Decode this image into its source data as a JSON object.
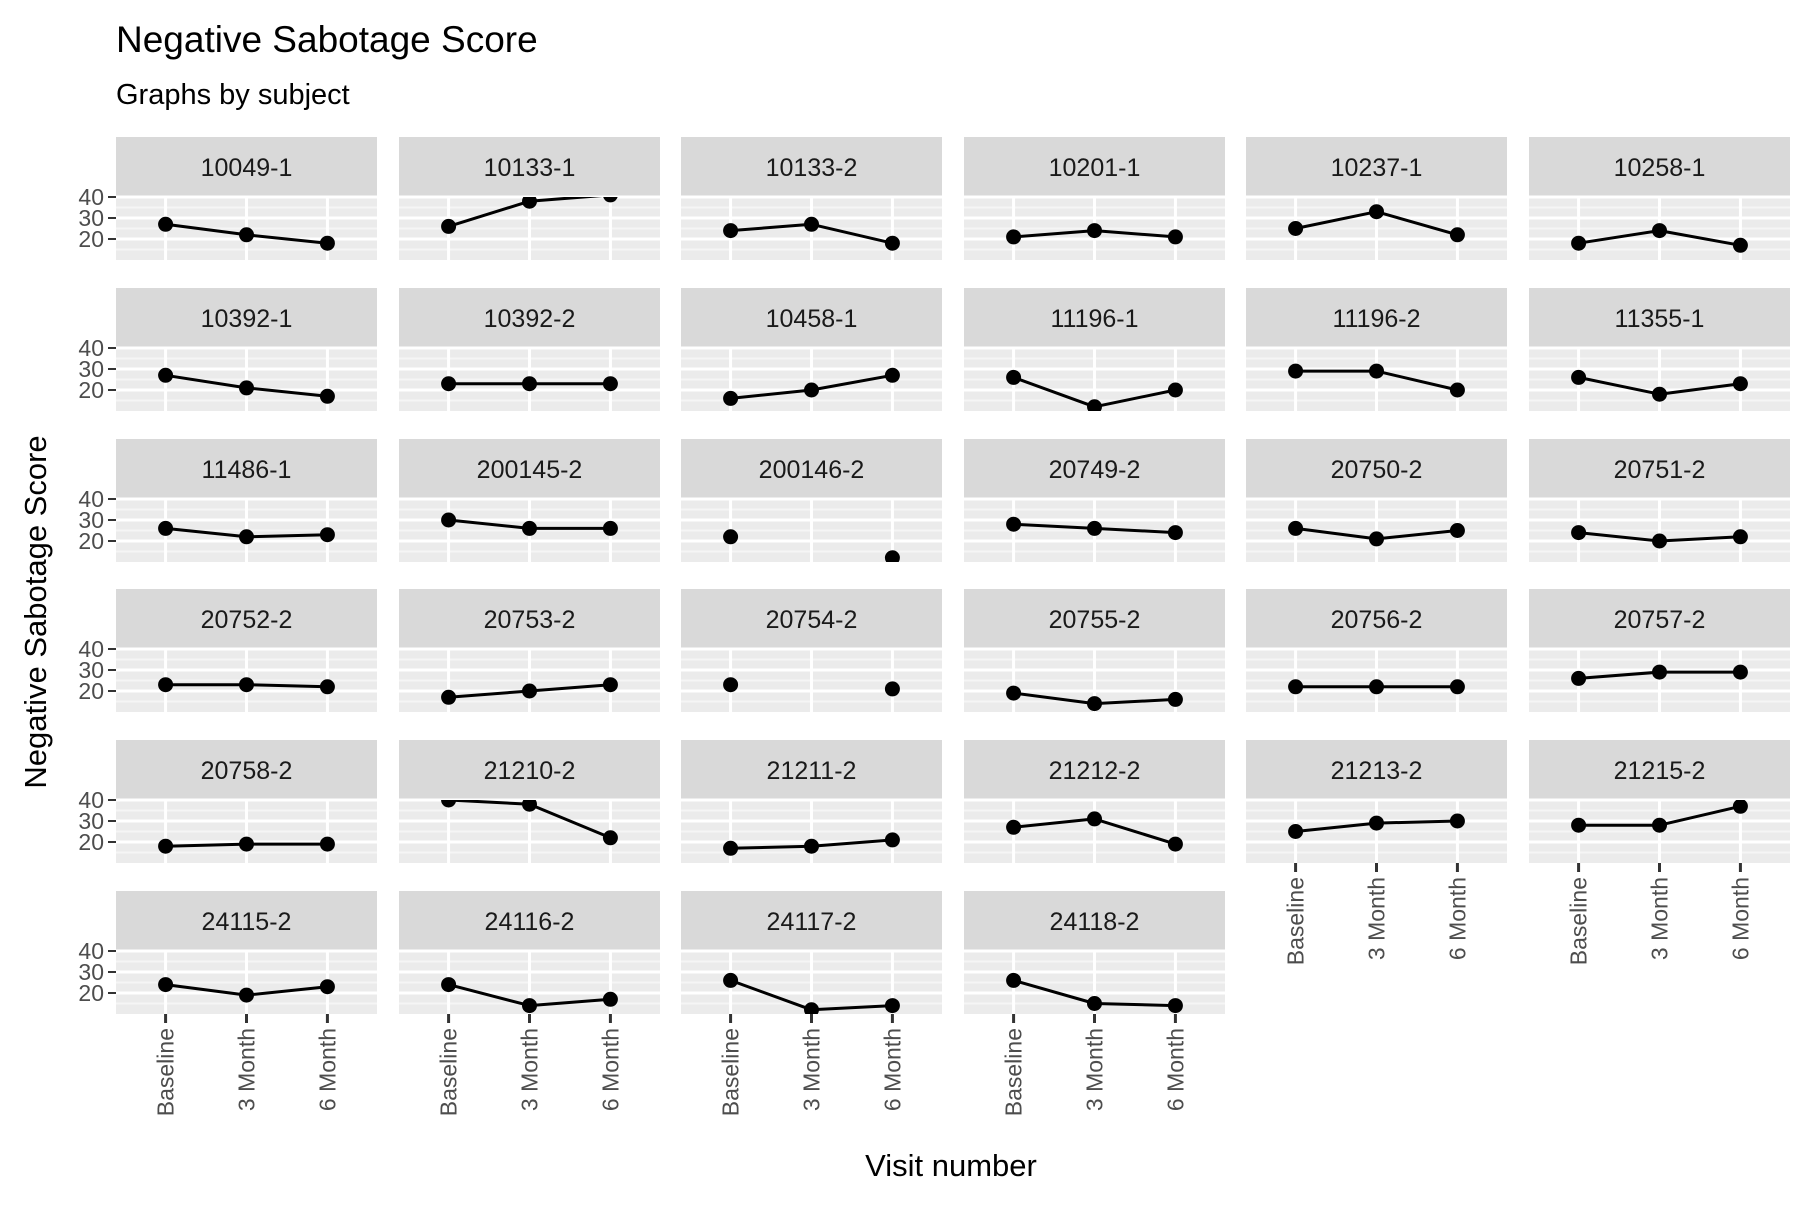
{
  "chart_data": {
    "type": "line",
    "title": "Negative Sabotage Score",
    "subtitle": "Graphs by subject",
    "xlabel": "Visit number",
    "ylabel": "Negative Sabotage Score",
    "categories": [
      "Baseline",
      "3 Month",
      "6 Month"
    ],
    "y_ticks": [
      20,
      30,
      40
    ],
    "ylim": [
      10,
      40
    ],
    "grid": true,
    "colors": {
      "panel_bg": "#ebebeb",
      "grid_major": "#ffffff",
      "grid_minor": "#f5f5f5",
      "strip_bg": "#d9d9d9",
      "line": "#000000",
      "point": "#000000"
    },
    "panels": [
      {
        "id": "10049-1",
        "values": [
          27,
          22,
          18
        ]
      },
      {
        "id": "10133-1",
        "values": [
          26,
          38,
          41
        ]
      },
      {
        "id": "10133-2",
        "values": [
          24,
          27,
          18
        ]
      },
      {
        "id": "10201-1",
        "values": [
          21,
          24,
          21
        ]
      },
      {
        "id": "10237-1",
        "values": [
          25,
          33,
          22
        ]
      },
      {
        "id": "10258-1",
        "values": [
          18,
          24,
          17
        ]
      },
      {
        "id": "10392-1",
        "values": [
          27,
          21,
          17
        ]
      },
      {
        "id": "10392-2",
        "values": [
          23,
          23,
          23
        ]
      },
      {
        "id": "10458-1",
        "values": [
          16,
          20,
          27
        ]
      },
      {
        "id": "11196-1",
        "values": [
          26,
          12,
          20
        ]
      },
      {
        "id": "11196-2",
        "values": [
          29,
          29,
          20
        ]
      },
      {
        "id": "11355-1",
        "values": [
          26,
          18,
          23
        ]
      },
      {
        "id": "11486-1",
        "values": [
          26,
          22,
          23
        ]
      },
      {
        "id": "200145-2",
        "values": [
          30,
          26,
          26
        ]
      },
      {
        "id": "200146-2",
        "values": [
          22,
          null,
          12
        ]
      },
      {
        "id": "20749-2",
        "values": [
          28,
          26,
          24
        ]
      },
      {
        "id": "20750-2",
        "values": [
          26,
          21,
          25
        ]
      },
      {
        "id": "20751-2",
        "values": [
          24,
          20,
          22
        ]
      },
      {
        "id": "20752-2",
        "values": [
          23,
          23,
          22
        ]
      },
      {
        "id": "20753-2",
        "values": [
          17,
          20,
          23
        ]
      },
      {
        "id": "20754-2",
        "values": [
          23,
          null,
          21
        ]
      },
      {
        "id": "20755-2",
        "values": [
          19,
          14,
          16
        ]
      },
      {
        "id": "20756-2",
        "values": [
          22,
          22,
          22
        ]
      },
      {
        "id": "20757-2",
        "values": [
          26,
          29,
          29
        ]
      },
      {
        "id": "20758-2",
        "values": [
          18,
          19,
          19
        ]
      },
      {
        "id": "21210-2",
        "values": [
          40,
          38,
          22
        ]
      },
      {
        "id": "21211-2",
        "values": [
          17,
          18,
          21
        ]
      },
      {
        "id": "21212-2",
        "values": [
          27,
          31,
          19
        ]
      },
      {
        "id": "21213-2",
        "values": [
          25,
          29,
          30
        ]
      },
      {
        "id": "21215-2",
        "values": [
          28,
          28,
          37
        ]
      },
      {
        "id": "24115-2",
        "values": [
          24,
          19,
          23
        ]
      },
      {
        "id": "24116-2",
        "values": [
          24,
          14,
          17
        ]
      },
      {
        "id": "24117-2",
        "values": [
          26,
          12,
          14
        ]
      },
      {
        "id": "24118-2",
        "values": [
          26,
          15,
          14
        ]
      }
    ]
  }
}
